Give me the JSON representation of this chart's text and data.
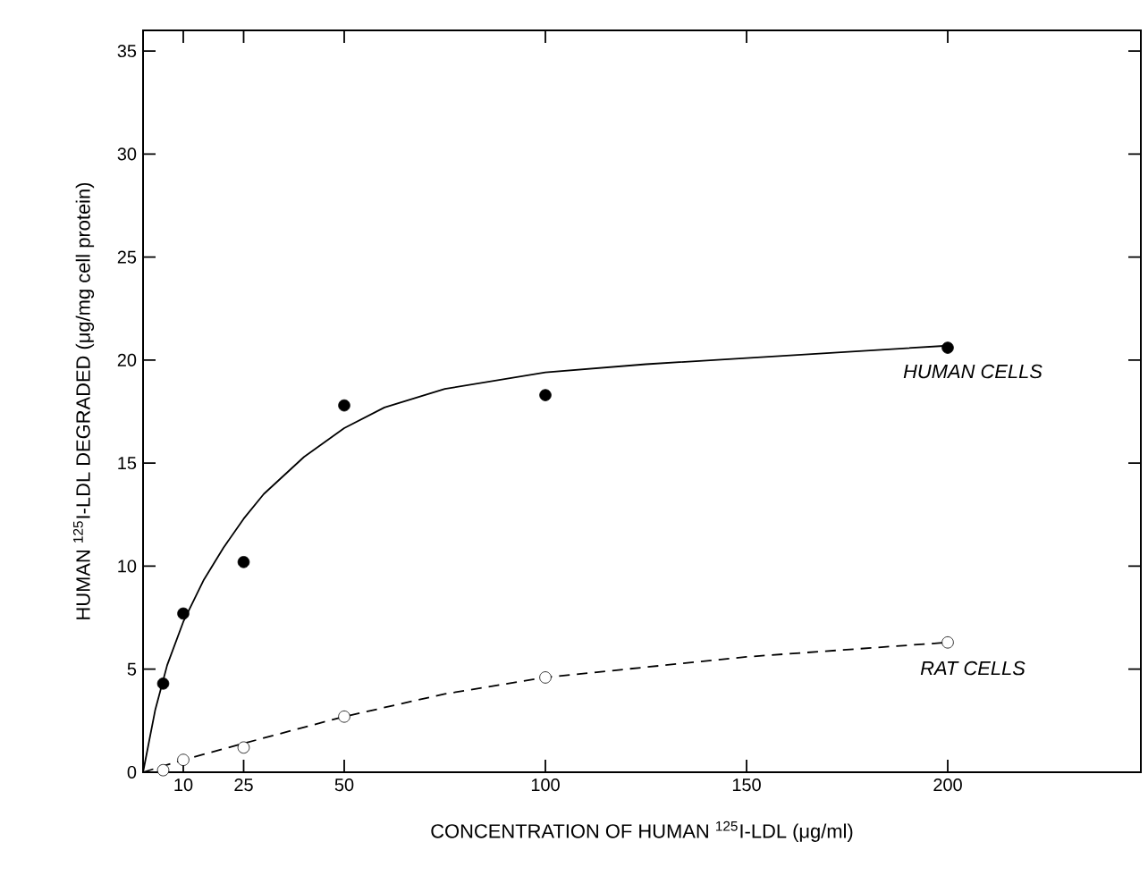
{
  "chart_data": {
    "type": "scatter",
    "xlabel": "CONCENTRATION OF HUMAN $^{125}$I-LDL (μg/ml)",
    "ylabel": "HUMAN $^{125}$I-LDL DEGRADED  (μg/mg cell protein)",
    "xlim": [
      0,
      248
    ],
    "xticks": [
      10,
      25,
      50,
      100,
      150,
      200
    ],
    "ylim": [
      0,
      36
    ],
    "yticks": [
      0,
      5,
      10,
      15,
      20,
      25,
      30,
      35
    ],
    "grid": false,
    "series": [
      {
        "color": "#000000",
        "marker": "circle",
        "x": [
          5,
          10,
          25,
          50,
          100,
          200
        ],
        "values": [
          4.3,
          7.7,
          10.2,
          17.8,
          18.3,
          20.6
        ]
      },
      {
        "color": "#ffffff",
        "marker": "circle",
        "x": [
          5,
          10,
          25,
          50,
          100,
          200
        ],
        "values": [
          0.1,
          0.6,
          1.2,
          2.7,
          4.6,
          6.3
        ]
      },
      {
        "type": "line",
        "name": "HUMAN CELLS",
        "color": "#000000",
        "line_style": "solid",
        "marker": "none",
        "x": [
          0,
          3,
          6,
          10,
          15,
          20,
          25,
          30,
          40,
          50,
          60,
          75,
          100,
          125,
          150,
          200
        ],
        "values": [
          0,
          3.0,
          5.2,
          7.3,
          9.3,
          10.9,
          12.3,
          13.5,
          15.3,
          16.7,
          17.7,
          18.6,
          19.4,
          19.8,
          20.1,
          20.7
        ]
      },
      {
        "type": "line",
        "name": "RAT CELLS",
        "color": "#000000",
        "line_style": "dashed",
        "marker": "none",
        "x": [
          0,
          10,
          25,
          50,
          75,
          100,
          150,
          200
        ],
        "values": [
          0,
          0.6,
          1.4,
          2.7,
          3.8,
          4.6,
          5.6,
          6.3
        ]
      }
    ]
  }
}
